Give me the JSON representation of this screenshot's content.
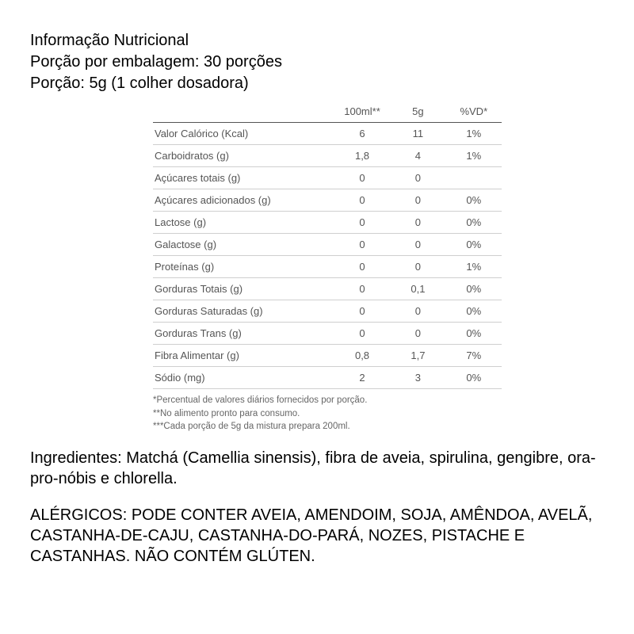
{
  "header": {
    "title": "Informação Nutricional",
    "servings_per_package": "Porção por embalagem: 30 porções",
    "serving_size": "Porção: 5g (1 colher dosadora)"
  },
  "table": {
    "columns": {
      "col1": "100ml**",
      "col2": "5g",
      "col3": "%VD*"
    },
    "rows": [
      {
        "label": "Valor Calórico (Kcal)",
        "v1": "6",
        "v2": "11",
        "v3": "1%"
      },
      {
        "label": "Carboidratos (g)",
        "v1": "1,8",
        "v2": "4",
        "v3": "1%"
      },
      {
        "label": "Açúcares totais (g)",
        "v1": "0",
        "v2": "0",
        "v3": ""
      },
      {
        "label": "Açúcares adicionados (g)",
        "v1": "0",
        "v2": "0",
        "v3": "0%"
      },
      {
        "label": "Lactose (g)",
        "v1": "0",
        "v2": "0",
        "v3": "0%"
      },
      {
        "label": "Galactose (g)",
        "v1": "0",
        "v2": "0",
        "v3": "0%"
      },
      {
        "label": "Proteínas (g)",
        "v1": "0",
        "v2": "0",
        "v3": "1%"
      },
      {
        "label": "Gorduras Totais (g)",
        "v1": "0",
        "v2": "0,1",
        "v3": "0%"
      },
      {
        "label": "Gorduras Saturadas (g)",
        "v1": "0",
        "v2": "0",
        "v3": "0%"
      },
      {
        "label": "Gorduras Trans (g)",
        "v1": "0",
        "v2": "0",
        "v3": "0%"
      },
      {
        "label": "Fibra Alimentar (g)",
        "v1": "0,8",
        "v2": "1,7",
        "v3": "7%"
      },
      {
        "label": "Sódio (mg)",
        "v1": "2",
        "v2": "3",
        "v3": "0%"
      }
    ]
  },
  "footnotes": {
    "f1": "*Percentual de valores diários fornecidos por porção.",
    "f2": "**No alimento pronto para consumo.",
    "f3": "***Cada porção de 5g da mistura prepara 200ml."
  },
  "ingredients": "Ingredientes: Matchá (Camellia sinensis), fibra de aveia, spirulina, gengibre, ora-pro-nóbis e chlorella.",
  "allergens": "ALÉRGICOS: PODE CONTER AVEIA, AMENDOIM, SOJA, AMÊNDOA, AVELÃ, CASTANHA-DE-CAJU, CASTANHA-DO-PARÁ, NOZES, PISTACHE E CASTANHAS. NÃO CONTÉM GLÚTEN."
}
